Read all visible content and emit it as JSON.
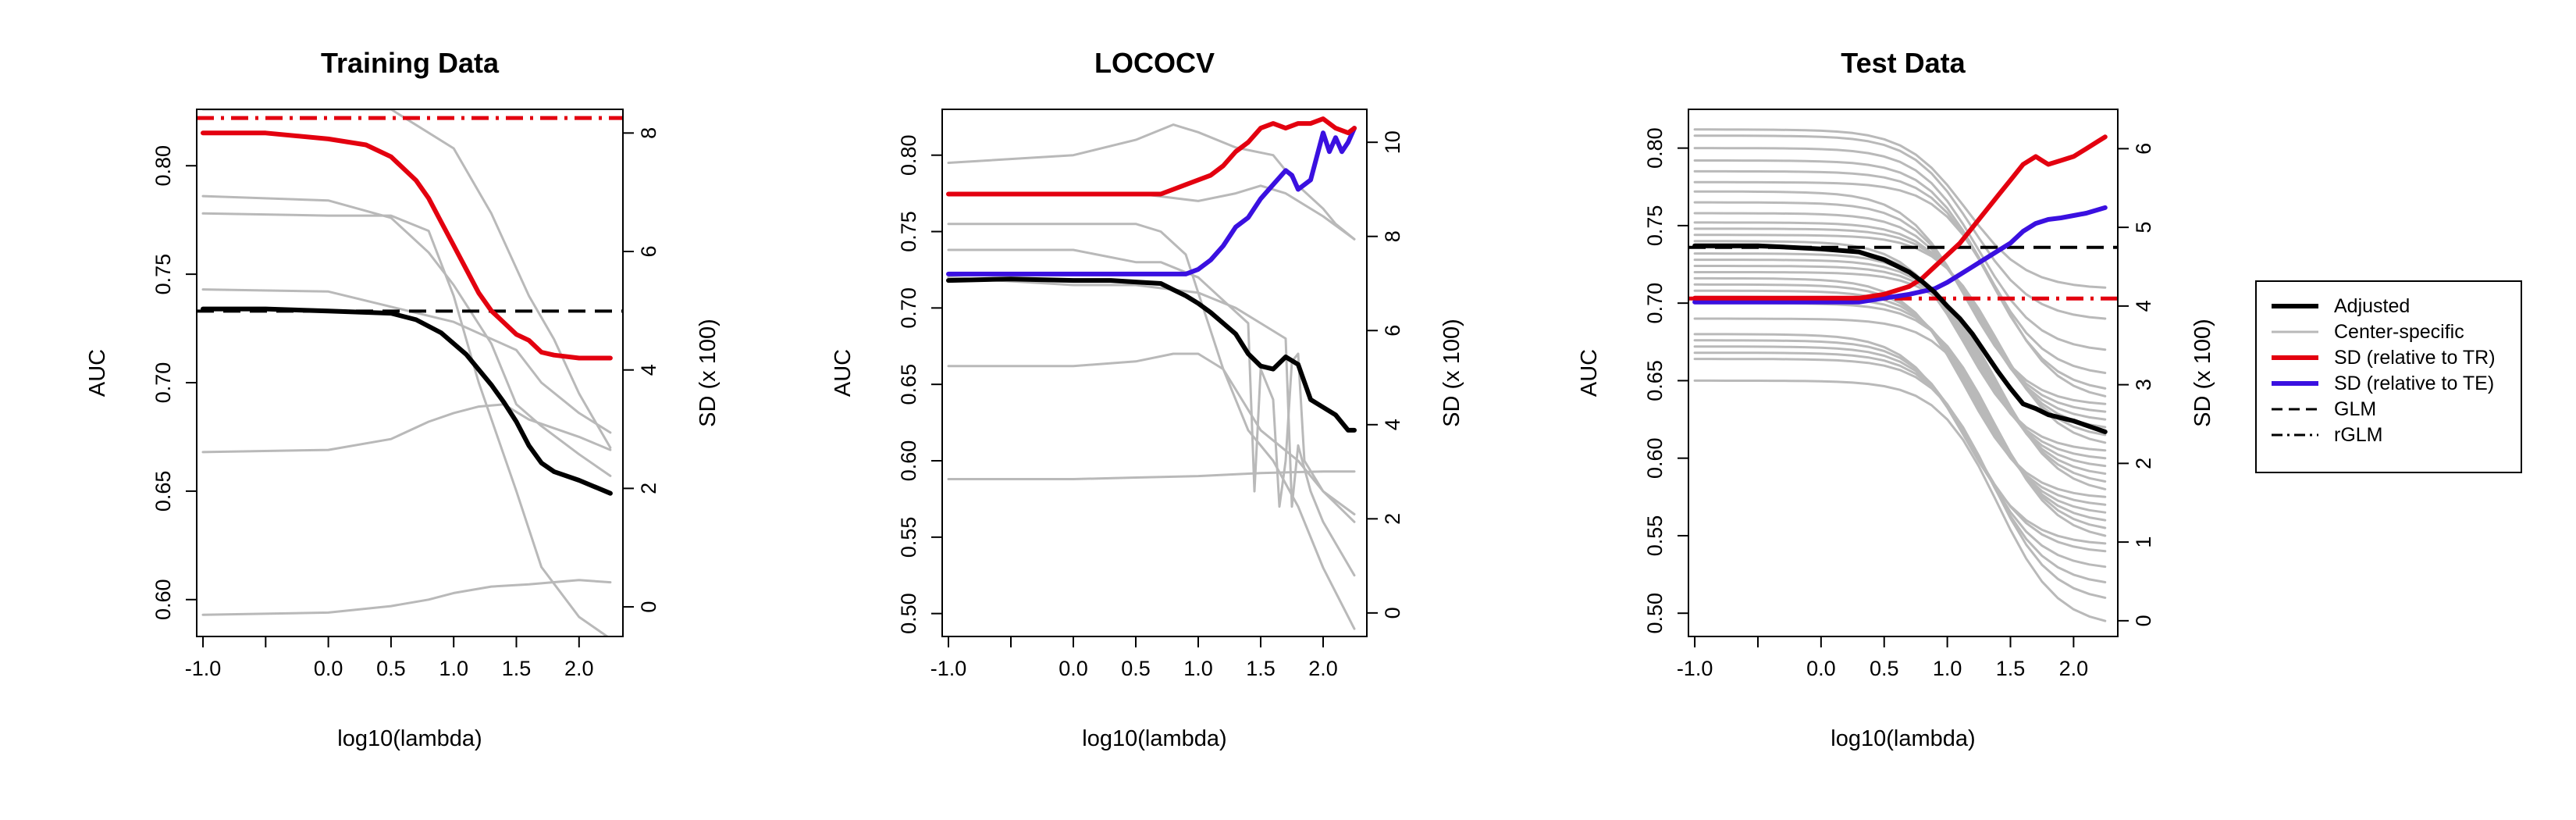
{
  "legend": {
    "entries": [
      {
        "label": "Adjusted",
        "color": "#000000",
        "style": "solid-thick"
      },
      {
        "label": "Center-specific",
        "color": "#b9b9b9",
        "style": "solid-thin"
      },
      {
        "label": "SD (relative to TR)",
        "color": "#e3000f",
        "style": "solid-thick"
      },
      {
        "label": "SD (relative to TE)",
        "color": "#3a10e0",
        "style": "solid-thick"
      },
      {
        "label": "GLM",
        "color": "#000000",
        "style": "dashed"
      },
      {
        "label": "rGLM",
        "color": "#000000",
        "style": "dotdash"
      }
    ]
  },
  "chart_data": [
    {
      "type": "line",
      "title": "Training Data",
      "xlabel": "log10(lambda)",
      "ylabel": "AUC",
      "y2label": "SD (x 100)",
      "xlim": [
        -1.05,
        2.35
      ],
      "ylim": [
        0.583,
        0.826
      ],
      "y2lim": [
        -0.5,
        8.4
      ],
      "xticks": [
        -1.0,
        -0.5,
        0.0,
        0.5,
        1.0,
        1.5,
        2.0
      ],
      "xtick_labels": [
        "-1.0",
        "",
        "0.0",
        "0.5",
        "1.0",
        "1.5",
        "2.0"
      ],
      "yticks": [
        0.6,
        0.65,
        0.7,
        0.75,
        0.8
      ],
      "ytick_labels": [
        "0.60",
        "0.65",
        "0.70",
        "0.75",
        "0.80"
      ],
      "y2ticks": [
        0,
        2,
        4,
        6,
        8
      ],
      "y2tick_labels": [
        "0",
        "2",
        "4",
        "6",
        "8"
      ],
      "center_specific": [
        {
          "x": [
            -1.0,
            0.5,
            1.0,
            1.3,
            1.6,
            1.8,
            2.0,
            2.25
          ],
          "y": [
            0.826,
            0.826,
            0.808,
            0.778,
            0.74,
            0.72,
            0.695,
            0.67
          ]
        },
        {
          "x": [
            -1.0,
            0.0,
            0.5,
            0.8,
            1.0,
            1.3,
            1.5,
            1.7,
            2.0,
            2.25
          ],
          "y": [
            0.786,
            0.784,
            0.776,
            0.76,
            0.745,
            0.718,
            0.69,
            0.68,
            0.667,
            0.657
          ]
        },
        {
          "x": [
            -1.0,
            0.0,
            0.5,
            0.8,
            1.0,
            1.2,
            1.5,
            1.7,
            2.0,
            2.25
          ],
          "y": [
            0.778,
            0.777,
            0.777,
            0.77,
            0.74,
            0.7,
            0.65,
            0.615,
            0.592,
            0.582
          ]
        },
        {
          "x": [
            -1.0,
            0.0,
            0.5,
            1.0,
            1.5,
            1.7,
            2.0,
            2.25
          ],
          "y": [
            0.743,
            0.742,
            0.735,
            0.728,
            0.715,
            0.7,
            0.686,
            0.677
          ]
        },
        {
          "x": [
            -1.0,
            0.0,
            0.5,
            0.8,
            1.0,
            1.2,
            1.4,
            1.6,
            2.0,
            2.25
          ],
          "y": [
            0.668,
            0.669,
            0.674,
            0.682,
            0.686,
            0.689,
            0.69,
            0.683,
            0.675,
            0.669
          ]
        },
        {
          "x": [
            -1.0,
            0.0,
            0.5,
            0.8,
            1.0,
            1.3,
            1.6,
            2.0,
            2.25
          ],
          "y": [
            0.593,
            0.594,
            0.597,
            0.6,
            0.603,
            0.606,
            0.607,
            0.609,
            0.608
          ]
        }
      ],
      "adjusted": {
        "x": [
          -1.0,
          -0.5,
          0.0,
          0.5,
          0.7,
          0.9,
          1.0,
          1.1,
          1.2,
          1.3,
          1.4,
          1.5,
          1.6,
          1.7,
          1.8,
          2.0,
          2.25
        ],
        "y": [
          0.734,
          0.734,
          0.733,
          0.732,
          0.729,
          0.723,
          0.718,
          0.713,
          0.706,
          0.699,
          0.691,
          0.682,
          0.671,
          0.663,
          0.659,
          0.655,
          0.649
        ]
      },
      "sd_tr": {
        "x": [
          -1.0,
          -0.5,
          0.0,
          0.3,
          0.5,
          0.7,
          0.8,
          0.9,
          1.0,
          1.1,
          1.2,
          1.3,
          1.4,
          1.5,
          1.6,
          1.7,
          1.8,
          2.0,
          2.1,
          2.25
        ],
        "y2": [
          8.0,
          8.0,
          7.9,
          7.8,
          7.6,
          7.2,
          6.9,
          6.5,
          6.1,
          5.7,
          5.3,
          5.0,
          4.8,
          4.6,
          4.5,
          4.3,
          4.25,
          4.2,
          4.2,
          4.2
        ]
      },
      "glm": 0.733,
      "rglm": 0.822,
      "rglm_color": "#e3000f"
    },
    {
      "type": "line",
      "title": "LOCOCV",
      "xlabel": "log10(lambda)",
      "ylabel": "AUC",
      "y2label": "SD (x 100)",
      "xlim": [
        -1.05,
        2.35
      ],
      "ylim": [
        0.485,
        0.83
      ],
      "y2lim": [
        -0.5,
        10.7
      ],
      "xticks": [
        -1.0,
        -0.5,
        0.0,
        0.5,
        1.0,
        1.5,
        2.0
      ],
      "xtick_labels": [
        "-1.0",
        "",
        "0.0",
        "0.5",
        "1.0",
        "1.5",
        "2.0"
      ],
      "yticks": [
        0.5,
        0.55,
        0.6,
        0.65,
        0.7,
        0.75,
        0.8
      ],
      "ytick_labels": [
        "0.50",
        "0.55",
        "0.60",
        "0.65",
        "0.70",
        "0.75",
        "0.80"
      ],
      "y2ticks": [
        0,
        2,
        4,
        6,
        8,
        10
      ],
      "y2tick_labels": [
        "0",
        "2",
        "4",
        "6",
        "8",
        "10"
      ],
      "center_specific": [
        {
          "x": [
            -1.0,
            0.0,
            0.5,
            0.8,
            1.0,
            1.3,
            1.6,
            1.8,
            2.0,
            2.1,
            2.25
          ],
          "y": [
            0.795,
            0.8,
            0.81,
            0.82,
            0.815,
            0.805,
            0.8,
            0.78,
            0.765,
            0.755,
            0.745
          ]
        },
        {
          "x": [
            -1.0,
            0.0,
            0.5,
            0.8,
            1.0,
            1.3,
            1.5,
            1.7,
            2.0,
            2.25
          ],
          "y": [
            0.775,
            0.775,
            0.775,
            0.772,
            0.77,
            0.775,
            0.78,
            0.775,
            0.76,
            0.745
          ]
        },
        {
          "x": [
            -1.0,
            0.0,
            0.5,
            0.7,
            0.9,
            1.0,
            1.2,
            1.4,
            1.6,
            1.8,
            2.0,
            2.25
          ],
          "y": [
            0.755,
            0.755,
            0.755,
            0.75,
            0.735,
            0.71,
            0.66,
            0.62,
            0.6,
            0.57,
            0.53,
            0.49
          ]
        },
        {
          "x": [
            -1.0,
            0.0,
            0.5,
            0.7,
            1.0,
            1.2,
            1.4,
            1.45,
            1.5,
            1.6,
            1.65,
            1.7,
            1.75,
            1.8,
            1.85,
            2.0,
            2.25
          ],
          "y": [
            0.738,
            0.738,
            0.73,
            0.73,
            0.72,
            0.705,
            0.69,
            0.58,
            0.66,
            0.64,
            0.57,
            0.6,
            0.665,
            0.67,
            0.6,
            0.58,
            0.56
          ]
        },
        {
          "x": [
            -1.0,
            0.0,
            0.5,
            0.8,
            1.0,
            1.3,
            1.5,
            1.7,
            1.75,
            1.8,
            1.9,
            2.0,
            2.25
          ],
          "y": [
            0.72,
            0.715,
            0.715,
            0.712,
            0.71,
            0.7,
            0.69,
            0.68,
            0.57,
            0.61,
            0.58,
            0.56,
            0.525
          ]
        },
        {
          "x": [
            -1.0,
            0.0,
            0.5,
            0.8,
            1.0,
            1.2,
            1.5,
            1.8,
            2.0,
            2.25
          ],
          "y": [
            0.662,
            0.662,
            0.665,
            0.67,
            0.67,
            0.66,
            0.62,
            0.6,
            0.58,
            0.565
          ]
        },
        {
          "x": [
            -1.0,
            0.0,
            0.5,
            1.0,
            1.5,
            2.0,
            2.25
          ],
          "y": [
            0.588,
            0.588,
            0.589,
            0.59,
            0.592,
            0.593,
            0.593
          ]
        }
      ],
      "adjusted": {
        "x": [
          -1.0,
          -0.5,
          0.0,
          0.3,
          0.5,
          0.7,
          0.8,
          0.9,
          1.0,
          1.1,
          1.2,
          1.3,
          1.4,
          1.5,
          1.6,
          1.7,
          1.8,
          1.9,
          2.0,
          2.1,
          2.2,
          2.25
        ],
        "y": [
          0.718,
          0.719,
          0.718,
          0.718,
          0.717,
          0.716,
          0.712,
          0.708,
          0.703,
          0.697,
          0.69,
          0.683,
          0.67,
          0.662,
          0.66,
          0.668,
          0.663,
          0.64,
          0.635,
          0.63,
          0.62,
          0.62
        ]
      },
      "sd_tr": {
        "x": [
          -1.0,
          -0.5,
          0.0,
          0.3,
          0.5,
          0.7,
          0.8,
          0.9,
          1.0,
          1.1,
          1.2,
          1.3,
          1.4,
          1.5,
          1.6,
          1.7,
          1.8,
          1.9,
          2.0,
          2.1,
          2.2,
          2.25
        ],
        "y2": [
          8.9,
          8.9,
          8.9,
          8.9,
          8.9,
          8.9,
          9.0,
          9.1,
          9.2,
          9.3,
          9.5,
          9.8,
          10.0,
          10.3,
          10.4,
          10.3,
          10.4,
          10.4,
          10.5,
          10.3,
          10.2,
          10.3
        ]
      },
      "sd_te": {
        "x": [
          -1.0,
          -0.5,
          0.0,
          0.3,
          0.5,
          0.7,
          0.8,
          0.9,
          1.0,
          1.1,
          1.2,
          1.3,
          1.4,
          1.5,
          1.6,
          1.7,
          1.75,
          1.8,
          1.9,
          2.0,
          2.05,
          2.1,
          2.15,
          2.2,
          2.25
        ],
        "y2": [
          7.2,
          7.2,
          7.2,
          7.2,
          7.2,
          7.2,
          7.2,
          7.2,
          7.3,
          7.5,
          7.8,
          8.2,
          8.4,
          8.8,
          9.1,
          9.4,
          9.3,
          9.0,
          9.2,
          10.2,
          9.8,
          10.1,
          9.8,
          10.0,
          10.3
        ]
      }
    },
    {
      "type": "line",
      "title": "Test Data",
      "xlabel": "log10(lambda)",
      "ylabel": "AUC",
      "y2label": "SD (x 100)",
      "xlim": [
        -1.05,
        2.35
      ],
      "ylim": [
        0.485,
        0.825
      ],
      "y2lim": [
        -0.2,
        6.5
      ],
      "xticks": [
        -1.0,
        -0.5,
        0.0,
        0.5,
        1.0,
        1.5,
        2.0
      ],
      "xtick_labels": [
        "-1.0",
        "",
        "0.0",
        "0.5",
        "1.0",
        "1.5",
        "2.0"
      ],
      "yticks": [
        0.5,
        0.55,
        0.6,
        0.65,
        0.7,
        0.75,
        0.8
      ],
      "ytick_labels": [
        "0.50",
        "0.55",
        "0.60",
        "0.65",
        "0.70",
        "0.75",
        "0.80"
      ],
      "y2ticks": [
        0,
        1,
        2,
        3,
        4,
        5,
        6
      ],
      "y2tick_labels": [
        "0",
        "1",
        "2",
        "3",
        "4",
        "5",
        "6"
      ],
      "center_specific_starts": [
        0.812,
        0.808,
        0.8,
        0.792,
        0.785,
        0.778,
        0.772,
        0.765,
        0.758,
        0.752,
        0.748,
        0.744,
        0.74,
        0.736,
        0.732,
        0.728,
        0.724,
        0.72,
        0.716,
        0.712,
        0.708,
        0.704,
        0.7,
        0.69,
        0.68,
        0.676,
        0.672,
        0.668,
        0.664,
        0.65
      ],
      "center_specific_ends": [
        0.71,
        0.69,
        0.67,
        0.655,
        0.645,
        0.64,
        0.635,
        0.63,
        0.625,
        0.62,
        0.615,
        0.61,
        0.605,
        0.6,
        0.595,
        0.59,
        0.585,
        0.58,
        0.575,
        0.57,
        0.565,
        0.56,
        0.555,
        0.55,
        0.545,
        0.54,
        0.53,
        0.52,
        0.51,
        0.495
      ],
      "adjusted": {
        "x": [
          -1.0,
          -0.5,
          0.0,
          0.3,
          0.5,
          0.7,
          0.8,
          0.9,
          1.0,
          1.1,
          1.2,
          1.3,
          1.4,
          1.5,
          1.6,
          1.7,
          1.8,
          2.0,
          2.25
        ],
        "y": [
          0.737,
          0.737,
          0.735,
          0.733,
          0.728,
          0.72,
          0.714,
          0.707,
          0.698,
          0.69,
          0.68,
          0.668,
          0.656,
          0.645,
          0.635,
          0.632,
          0.628,
          0.624,
          0.617
        ]
      },
      "sd_tr": {
        "x": [
          -1.0,
          -0.5,
          0.0,
          0.3,
          0.5,
          0.7,
          0.8,
          0.9,
          1.0,
          1.1,
          1.2,
          1.3,
          1.4,
          1.5,
          1.6,
          1.7,
          1.75,
          1.8,
          1.9,
          2.0,
          2.1,
          2.2,
          2.25
        ],
        "y2": [
          4.1,
          4.1,
          4.1,
          4.1,
          4.15,
          4.25,
          4.35,
          4.5,
          4.65,
          4.8,
          5.0,
          5.2,
          5.4,
          5.6,
          5.8,
          5.9,
          5.85,
          5.8,
          5.85,
          5.9,
          6.0,
          6.1,
          6.15
        ]
      },
      "sd_te": {
        "x": [
          -1.0,
          -0.5,
          0.0,
          0.3,
          0.5,
          0.7,
          0.9,
          1.0,
          1.1,
          1.2,
          1.3,
          1.4,
          1.5,
          1.6,
          1.7,
          1.8,
          1.9,
          2.0,
          2.1,
          2.25
        ],
        "y2": [
          4.05,
          4.05,
          4.05,
          4.05,
          4.1,
          4.15,
          4.22,
          4.3,
          4.4,
          4.5,
          4.6,
          4.7,
          4.8,
          4.95,
          5.05,
          5.1,
          5.12,
          5.15,
          5.18,
          5.25
        ]
      },
      "glm": 0.736,
      "rglm": 0.703,
      "rglm_color": "#e3000f"
    }
  ]
}
